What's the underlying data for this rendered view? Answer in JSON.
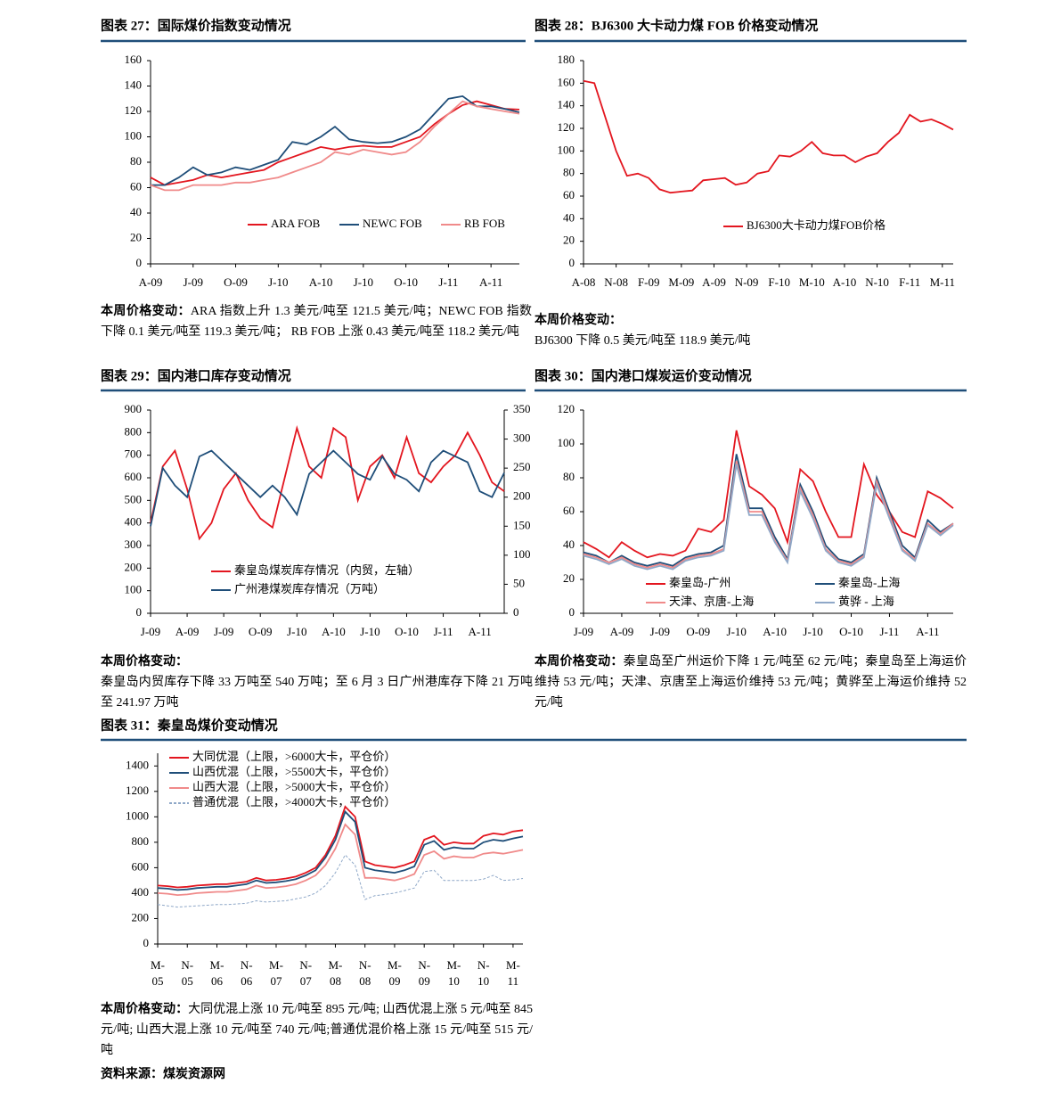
{
  "chart_data": [
    {
      "type": "line",
      "title": "图表 27：国际煤价指数变动情况",
      "categories": [
        "A-09",
        null,
        null,
        "J-09",
        null,
        null,
        "O-09",
        null,
        null,
        "J-10",
        null,
        null,
        "A-10",
        null,
        null,
        "J-10",
        null,
        null,
        "O-10",
        null,
        null,
        "J-11",
        null,
        null,
        "A-11",
        null,
        null
      ],
      "ylim": [
        0,
        160
      ],
      "yticks": [
        0,
        20,
        40,
        60,
        80,
        100,
        120,
        140,
        160
      ],
      "series": [
        {
          "name": "ARA FOB",
          "color": "#e3161f",
          "values": [
            68,
            62,
            64,
            66,
            70,
            68,
            70,
            72,
            74,
            80,
            84,
            88,
            92,
            90,
            92,
            93,
            92,
            92,
            96,
            100,
            110,
            118,
            125,
            128,
            125,
            122,
            121.5
          ]
        },
        {
          "name": "NEWC FOB",
          "color": "#1f4e79",
          "values": [
            62,
            62,
            68,
            76,
            70,
            72,
            76,
            74,
            78,
            82,
            96,
            94,
            100,
            108,
            98,
            96,
            95,
            96,
            100,
            106,
            118,
            130,
            132,
            124,
            124,
            122,
            119.3
          ]
        },
        {
          "name": "RB FOB",
          "color": "#f08a8a",
          "values": [
            62,
            58,
            58,
            62,
            62,
            62,
            64,
            64,
            66,
            68,
            72,
            76,
            80,
            88,
            86,
            90,
            88,
            86,
            88,
            96,
            108,
            118,
            128,
            124,
            122,
            120,
            118.2
          ]
        }
      ],
      "caption_label": "本周价格变动：",
      "caption": "ARA 指数上升 1.3 美元/吨至 121.5 美元/吨；NEWC FOB 指数下降 0.1 美元/吨至 119.3 美元/吨； RB FOB 上涨 0.43 美元/吨至 118.2 美元/吨"
    },
    {
      "type": "line",
      "title": "图表 28：BJ6300 大卡动力煤 FOB 价格变动情况",
      "categories": [
        "A-08",
        null,
        null,
        "N-08",
        null,
        null,
        "F-09",
        null,
        null,
        "M-09",
        null,
        null,
        "A-09",
        null,
        null,
        "N-09",
        null,
        null,
        "F-10",
        null,
        null,
        "M-10",
        null,
        null,
        "A-10",
        null,
        null,
        "N-10",
        null,
        null,
        "F-11",
        null,
        null,
        "M-11",
        null
      ],
      "ylim": [
        0,
        180
      ],
      "yticks": [
        0,
        20,
        40,
        60,
        80,
        100,
        120,
        140,
        160,
        180
      ],
      "series": [
        {
          "name": "BJ6300大卡动力煤FOB价格",
          "color": "#e3161f",
          "values": [
            162,
            160,
            130,
            100,
            78,
            80,
            76,
            66,
            63,
            64,
            65,
            74,
            75,
            76,
            70,
            72,
            80,
            82,
            96,
            95,
            100,
            108,
            98,
            96,
            96,
            90,
            95,
            98,
            108,
            116,
            132,
            126,
            128,
            124,
            118.9
          ]
        }
      ],
      "caption_label": "本周价格变动：",
      "caption": "BJ6300 下降 0.5 美元/吨至 118.9 美元/吨"
    },
    {
      "type": "line",
      "title": "图表 29：国内港口库存变动情况",
      "categories": [
        "J-09",
        null,
        null,
        "A-09",
        null,
        null,
        "J-09",
        null,
        null,
        "O-09",
        null,
        null,
        "J-10",
        null,
        null,
        "A-10",
        null,
        null,
        "J-10",
        null,
        null,
        "O-10",
        null,
        null,
        "J-11",
        null,
        null,
        "A-11",
        null,
        null
      ],
      "ylim": [
        0,
        900
      ],
      "yticks": [
        0,
        100,
        200,
        300,
        400,
        500,
        600,
        700,
        800,
        900
      ],
      "y2lim": [
        0,
        350
      ],
      "y2ticks": [
        0,
        50,
        100,
        150,
        200,
        250,
        300,
        350
      ],
      "series": [
        {
          "name": "秦皇岛煤炭库存情况（内贸，左轴）",
          "color": "#e3161f",
          "values": [
            400,
            650,
            720,
            550,
            330,
            400,
            550,
            620,
            500,
            420,
            380,
            600,
            820,
            650,
            600,
            820,
            780,
            500,
            650,
            700,
            600,
            780,
            620,
            580,
            650,
            700,
            800,
            700,
            580,
            540
          ]
        },
        {
          "name": "广州港煤炭库存情况（万吨）",
          "color": "#1f4e79",
          "axis": "y2",
          "values": [
            150,
            250,
            220,
            200,
            270,
            280,
            260,
            240,
            220,
            200,
            220,
            200,
            170,
            240,
            260,
            280,
            260,
            240,
            230,
            270,
            240,
            230,
            210,
            260,
            280,
            270,
            260,
            210,
            200,
            241.97
          ]
        }
      ],
      "caption_label": "本周价格变动：",
      "caption": "秦皇岛内贸库存下降 33 万吨至 540 万吨；至 6 月 3 日广州港库存下降 21 万吨至 241.97 万吨"
    },
    {
      "type": "line",
      "title": "图表 30：国内港口煤炭运价变动情况",
      "categories": [
        "J-09",
        null,
        null,
        "A-09",
        null,
        null,
        "J-09",
        null,
        null,
        "O-09",
        null,
        null,
        "J-10",
        null,
        null,
        "A-10",
        null,
        null,
        "J-10",
        null,
        null,
        "O-10",
        null,
        null,
        "J-11",
        null,
        null,
        "A-11",
        null,
        null
      ],
      "ylim": [
        0,
        120
      ],
      "yticks": [
        0,
        20,
        40,
        60,
        80,
        100,
        120
      ],
      "series": [
        {
          "name": "秦皇岛-广州",
          "color": "#e3161f",
          "values": [
            42,
            38,
            33,
            42,
            37,
            33,
            35,
            34,
            37,
            50,
            48,
            55,
            108,
            75,
            70,
            62,
            42,
            85,
            78,
            60,
            45,
            45,
            88,
            70,
            60,
            48,
            45,
            72,
            68,
            62
          ]
        },
        {
          "name": "秦皇岛-上海",
          "color": "#1f4e79",
          "values": [
            36,
            34,
            30,
            34,
            30,
            28,
            30,
            28,
            33,
            35,
            36,
            40,
            94,
            62,
            62,
            45,
            32,
            76,
            60,
            40,
            32,
            30,
            35,
            80,
            60,
            40,
            33,
            55,
            48,
            53
          ]
        },
        {
          "name": "天津、京唐-上海",
          "color": "#f08a8a",
          "values": [
            35,
            33,
            30,
            33,
            29,
            27,
            29,
            27,
            32,
            34,
            35,
            38,
            90,
            60,
            60,
            43,
            31,
            74,
            58,
            38,
            31,
            29,
            34,
            78,
            58,
            38,
            32,
            53,
            47,
            53
          ]
        },
        {
          "name": "黄骅 - 上海",
          "color": "#8fa8c8",
          "values": [
            34,
            32,
            29,
            32,
            28,
            26,
            28,
            26,
            31,
            33,
            34,
            37,
            88,
            58,
            58,
            42,
            30,
            72,
            56,
            37,
            30,
            28,
            33,
            76,
            56,
            37,
            31,
            52,
            46,
            52
          ]
        }
      ],
      "caption_label": "本周价格变动：",
      "caption": "秦皇岛至广州运价下降 1 元/吨至 62 元/吨；秦皇岛至上海运价维持 53 元/吨；天津、京唐至上海运价维持 53 元/吨；黄骅至上海运价维持 52 元/吨"
    },
    {
      "type": "line",
      "title": "图表 31：秦皇岛煤价变动情况",
      "categories": [
        "M-\n05",
        null,
        null,
        "N-\n05",
        null,
        null,
        "M-\n06",
        null,
        null,
        "N-\n06",
        null,
        null,
        "M-\n07",
        null,
        null,
        "N-\n07",
        null,
        null,
        "M-\n08",
        null,
        null,
        "N-\n08",
        null,
        null,
        "M-\n09",
        null,
        null,
        "N-\n09",
        null,
        null,
        "M-\n10",
        null,
        null,
        "N-\n10",
        null,
        null,
        "M-\n11",
        null
      ],
      "ylim": [
        0,
        1500
      ],
      "yticks": [
        0,
        200,
        400,
        600,
        800,
        1000,
        1200,
        1400
      ],
      "series": [
        {
          "name": "大同优混（上限，>6000大卡，平仓价）",
          "color": "#e3161f",
          "values": [
            460,
            455,
            445,
            450,
            460,
            465,
            470,
            470,
            480,
            490,
            520,
            500,
            505,
            515,
            530,
            560,
            600,
            700,
            850,
            1080,
            1000,
            650,
            620,
            610,
            600,
            620,
            650,
            820,
            850,
            780,
            800,
            790,
            790,
            850,
            870,
            860,
            885,
            895
          ]
        },
        {
          "name": "山西优混（上限，>5500大卡，平仓价）",
          "color": "#1f4e79",
          "values": [
            440,
            435,
            425,
            430,
            440,
            445,
            450,
            450,
            460,
            470,
            500,
            480,
            485,
            495,
            510,
            540,
            580,
            680,
            820,
            1040,
            960,
            600,
            580,
            570,
            560,
            580,
            610,
            780,
            810,
            740,
            760,
            750,
            750,
            800,
            820,
            810,
            830,
            845
          ]
        },
        {
          "name": "山西大混（上限，>5000大卡，平仓价）",
          "color": "#f08a8a",
          "values": [
            400,
            395,
            385,
            390,
            400,
            405,
            410,
            410,
            420,
            430,
            460,
            440,
            445,
            455,
            470,
            500,
            540,
            620,
            750,
            940,
            860,
            520,
            520,
            510,
            500,
            520,
            550,
            700,
            730,
            670,
            690,
            680,
            680,
            710,
            720,
            710,
            725,
            740
          ]
        },
        {
          "name": "普通优混（上限，>4000大卡，平仓价）",
          "color": "#8fa8c8",
          "dashed": true,
          "values": [
            310,
            300,
            290,
            295,
            300,
            305,
            310,
            310,
            315,
            320,
            340,
            330,
            335,
            340,
            355,
            370,
            400,
            460,
            560,
            700,
            620,
            350,
            380,
            390,
            400,
            420,
            440,
            570,
            580,
            500,
            500,
            500,
            500,
            510,
            540,
            500,
            505,
            515
          ]
        }
      ],
      "caption_label": "本周价格变动：",
      "caption": "大同优混上涨 10 元/吨至 895 元/吨; 山西优混上涨 5 元/吨至 845 元/吨; 山西大混上涨 10 元/吨至 740 元/吨;普通优混价格上涨 15 元/吨至 515 元/吨"
    }
  ],
  "source": "资料来源：煤炭资源网"
}
